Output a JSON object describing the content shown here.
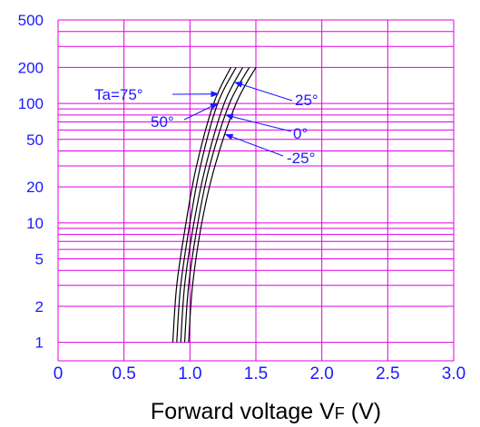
{
  "chart_data": {
    "type": "line",
    "title": "",
    "xlabel": "Forward voltage VF (V)",
    "xlabel_parts": {
      "main_before": "Forward voltage V",
      "subscript": "F",
      "main_after": " (V)"
    },
    "ylabel": "",
    "y_scale": "log",
    "xlim": [
      0,
      3.0
    ],
    "ylim": [
      0.7,
      500
    ],
    "x_ticks": [
      "0",
      "0.5",
      "1.0",
      "1.5",
      "2.0",
      "2.5",
      "3.0"
    ],
    "x_tick_values": [
      0,
      0.5,
      1.0,
      1.5,
      2.0,
      2.5,
      3.0
    ],
    "y_ticks": [
      "1",
      "2",
      "5",
      "10",
      "20",
      "50",
      "100",
      "200",
      "500"
    ],
    "y_tick_values": [
      1,
      2,
      5,
      10,
      20,
      50,
      100,
      200,
      500
    ],
    "grid": true,
    "colors": {
      "grid": "#e000e0",
      "text": "#1a1aff",
      "curve": "#000000",
      "arrow": "#1a1aff"
    },
    "series": [
      {
        "name": "Ta=75°",
        "x": [
          0.87,
          0.9,
          0.97,
          1.05,
          1.18,
          1.31
        ],
        "y": [
          1,
          3,
          10,
          30,
          100,
          200
        ]
      },
      {
        "name": "50°",
        "x": [
          0.9,
          0.93,
          1.0,
          1.08,
          1.21,
          1.35
        ],
        "y": [
          1,
          3,
          10,
          30,
          100,
          200
        ]
      },
      {
        "name": "25°",
        "x": [
          0.93,
          0.96,
          1.03,
          1.12,
          1.26,
          1.4
        ],
        "y": [
          1,
          3,
          10,
          30,
          100,
          200
        ]
      },
      {
        "name": "0°",
        "x": [
          0.96,
          0.99,
          1.06,
          1.15,
          1.3,
          1.45
        ],
        "y": [
          1,
          3,
          10,
          30,
          100,
          200
        ]
      },
      {
        "name": "-25°",
        "x": [
          0.99,
          1.02,
          1.09,
          1.19,
          1.35,
          1.5
        ],
        "y": [
          1,
          3,
          10,
          30,
          100,
          200
        ]
      }
    ],
    "annotations": [
      {
        "text": "Ta=75°",
        "series": "Ta=75°"
      },
      {
        "text": "50°",
        "series": "50°"
      },
      {
        "text": "25°",
        "series": "25°"
      },
      {
        "text": "0°",
        "series": "0°"
      },
      {
        "text": "-25°",
        "series": "-25°"
      }
    ]
  }
}
